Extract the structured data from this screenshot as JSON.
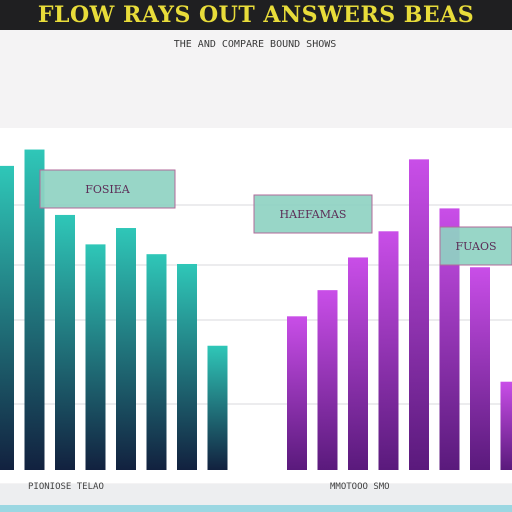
{
  "title": "FLOW RAYS OUT ANSWERS BEAS",
  "subtitle": "THE AND COMPARE BOUND SHOWS",
  "colors": {
    "title_text": "#e8dc3a",
    "title_band": "#1f1f21",
    "teal_top": "#2fc7b8",
    "teal_bottom": "#12213f",
    "purple_top": "#c94ee8",
    "purple_bottom": "#5a1a7c",
    "callout_fill": "#8fd2c2",
    "callout_border": "#b06a9a",
    "gridline": "#d9d9de"
  },
  "chart_data": [
    {
      "type": "bar",
      "series_color": "teal",
      "category_label": "PIONIOSE TELAO",
      "values": [
        93,
        98,
        78,
        69,
        74,
        66,
        63,
        38
      ],
      "ylim": [
        0,
        100
      ],
      "grid": true,
      "annotations": [
        {
          "text": "FOSIEA",
          "bar_index": 1
        }
      ]
    },
    {
      "type": "bar",
      "series_color": "purple",
      "category_label": "MMOTOOO SMO",
      "values": [
        47,
        55,
        65,
        73,
        95,
        80,
        62,
        27
      ],
      "ylim": [
        0,
        100
      ],
      "grid": true,
      "annotations": [
        {
          "text": "HAEFAMAS",
          "bar_index": 2
        },
        {
          "text": "FUAOS",
          "bar_index": 6
        }
      ]
    }
  ]
}
